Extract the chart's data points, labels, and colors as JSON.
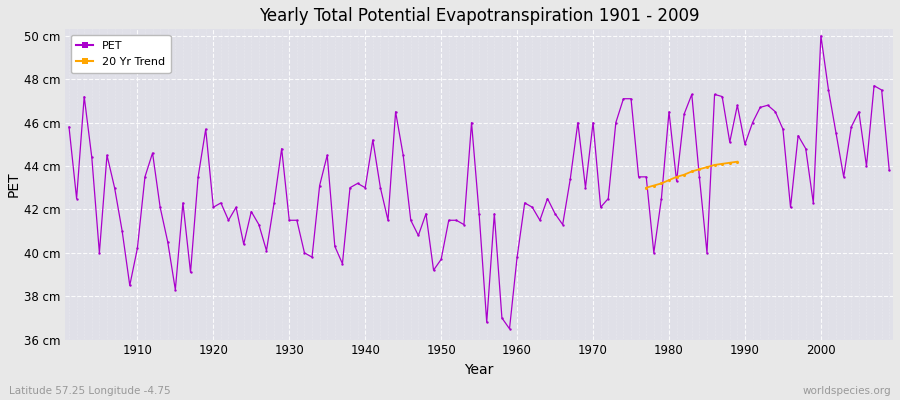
{
  "title": "Yearly Total Potential Evapotranspiration 1901 - 2009",
  "xlabel": "Year",
  "ylabel": "PET",
  "subtitle_left": "Latitude 57.25 Longitude -4.75",
  "subtitle_right": "worldspecies.org",
  "pet_color": "#AA00CC",
  "trend_color": "#FFA500",
  "bg_color": "#E8E8E8",
  "plot_bg_color": "#E0E0E8",
  "grid_color": "#FFFFFF",
  "ylim": [
    36,
    50
  ],
  "xlim": [
    1901,
    2009
  ],
  "ytick_labels": [
    "36 cm",
    "38 cm",
    "40 cm",
    "42 cm",
    "44 cm",
    "46 cm",
    "48 cm",
    "50 cm"
  ],
  "ytick_values": [
    36,
    38,
    40,
    42,
    44,
    46,
    48,
    50
  ],
  "xtick_values": [
    1910,
    1920,
    1930,
    1940,
    1950,
    1960,
    1970,
    1980,
    1990,
    2000
  ],
  "pet_years": [
    1901,
    1902,
    1903,
    1904,
    1905,
    1906,
    1907,
    1908,
    1909,
    1910,
    1911,
    1912,
    1913,
    1914,
    1915,
    1916,
    1917,
    1918,
    1919,
    1920,
    1921,
    1922,
    1923,
    1924,
    1925,
    1926,
    1927,
    1928,
    1929,
    1930,
    1931,
    1932,
    1933,
    1934,
    1935,
    1936,
    1937,
    1938,
    1939,
    1940,
    1941,
    1942,
    1943,
    1944,
    1945,
    1946,
    1947,
    1948,
    1949,
    1950,
    1951,
    1952,
    1953,
    1954,
    1955,
    1956,
    1957,
    1958,
    1959,
    1960,
    1961,
    1962,
    1963,
    1964,
    1965,
    1966,
    1967,
    1968,
    1969,
    1970,
    1971,
    1972,
    1973,
    1974,
    1975,
    1976,
    1977,
    1978,
    1979,
    1980,
    1981,
    1982,
    1983,
    1984,
    1985,
    1986,
    1987,
    1988,
    1989,
    1990,
    1991,
    1992,
    1993,
    1994,
    1995,
    1996,
    1997,
    1998,
    1999,
    2000,
    2001,
    2002,
    2003,
    2004,
    2005,
    2006,
    2007,
    2008,
    2009
  ],
  "pet_values": [
    45.8,
    42.5,
    47.2,
    44.4,
    40.0,
    44.5,
    43.0,
    41.0,
    38.5,
    40.2,
    43.5,
    44.6,
    42.1,
    40.5,
    38.3,
    42.3,
    39.1,
    43.5,
    45.7,
    42.1,
    42.3,
    41.5,
    42.1,
    40.4,
    41.9,
    41.3,
    40.1,
    42.3,
    44.8,
    41.5,
    41.5,
    40.0,
    39.8,
    43.1,
    44.5,
    40.3,
    39.5,
    43.0,
    43.2,
    43.0,
    45.2,
    43.0,
    41.5,
    46.5,
    44.5,
    41.5,
    40.8,
    41.8,
    39.2,
    39.7,
    41.5,
    41.5,
    41.3,
    46.0,
    41.8,
    36.8,
    41.8,
    37.0,
    36.5,
    39.8,
    42.3,
    42.1,
    41.5,
    42.5,
    41.8,
    41.3,
    43.4,
    46.0,
    43.0,
    46.0,
    42.1,
    42.5,
    46.0,
    47.1,
    47.1,
    43.5,
    43.5,
    40.0,
    42.5,
    46.5,
    43.3,
    46.4,
    47.3,
    43.5,
    40.0,
    47.3,
    47.2,
    45.1,
    46.8,
    45.0,
    46.0,
    46.7,
    46.8,
    46.5,
    45.7,
    42.1,
    45.4,
    44.8,
    42.3,
    50.0,
    47.5,
    45.5,
    43.5,
    45.8,
    46.5,
    44.0,
    47.7,
    47.5,
    43.8
  ],
  "trend_years": [
    1977,
    1978,
    1979,
    1980,
    1981,
    1982,
    1983,
    1984,
    1985,
    1986,
    1987,
    1988,
    1989
  ],
  "trend_values": [
    43.0,
    43.1,
    43.2,
    43.35,
    43.5,
    43.6,
    43.75,
    43.85,
    43.95,
    44.05,
    44.1,
    44.15,
    44.2
  ]
}
